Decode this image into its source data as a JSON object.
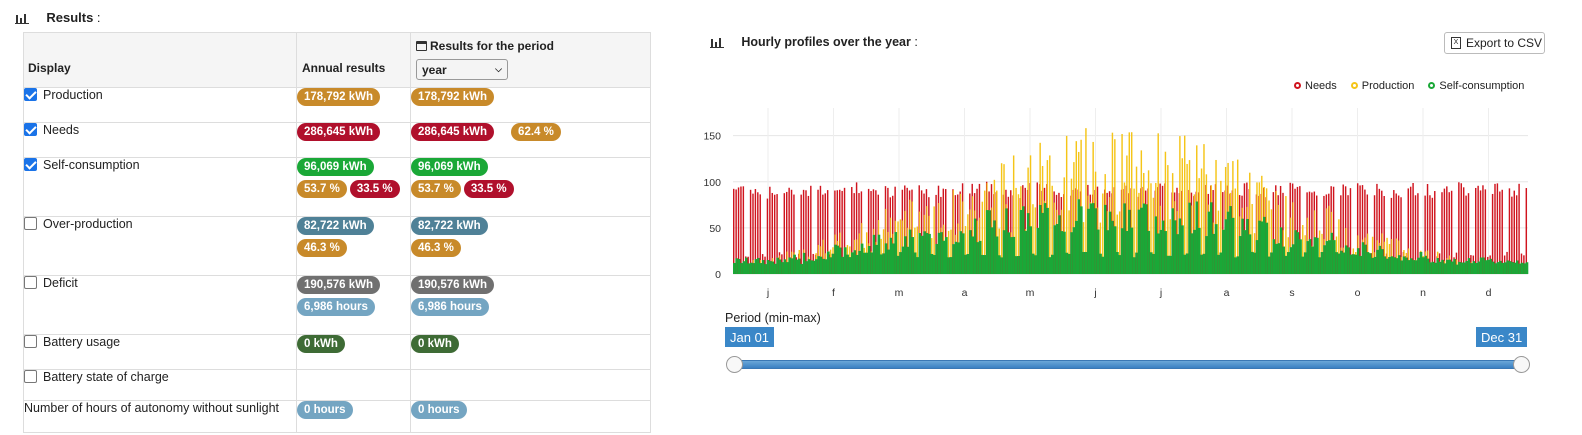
{
  "left": {
    "title": "Results",
    "title_suffix": " :",
    "headers": {
      "display": "Display",
      "annual": "Annual results",
      "period": "Results for the period"
    },
    "period_select": "year",
    "rows": [
      {
        "label": "Production",
        "checked": true,
        "annual": [
          {
            "text": "178,792 kWh",
            "color": "#c88a2a"
          }
        ],
        "period": [
          {
            "text": "178,792 kWh",
            "color": "#c88a2a"
          }
        ]
      },
      {
        "label": "Needs",
        "checked": true,
        "annual": [
          {
            "text": "286,645 kWh",
            "color": "#b0102c"
          }
        ],
        "period": [
          {
            "text": "286,645 kWh",
            "color": "#b0102c"
          },
          {
            "text": "62.4 %",
            "color": "#c88a2a"
          }
        ]
      },
      {
        "label": "Self-consumption",
        "checked": true,
        "annual": [
          {
            "text": "96,069 kWh",
            "color": "#1aa837"
          },
          {
            "text": "53.7 %",
            "color": "#c88a2a"
          },
          {
            "text": "33.5 %",
            "color": "#b0102c"
          }
        ],
        "period": [
          {
            "text": "96,069 kWh",
            "color": "#1aa837"
          },
          {
            "text": "53.7 %",
            "color": "#c88a2a"
          },
          {
            "text": "33.5 %",
            "color": "#b0102c"
          }
        ]
      },
      {
        "label": "Over-production",
        "checked": false,
        "annual": [
          {
            "text": "82,722 kWh",
            "color": "#4f8197"
          },
          {
            "text": "46.3 %",
            "color": "#c88a2a"
          }
        ],
        "period": [
          {
            "text": "82,722 kWh",
            "color": "#4f8197"
          },
          {
            "text": "46.3 %",
            "color": "#c88a2a"
          }
        ]
      },
      {
        "label": "Deficit",
        "checked": false,
        "annual": [
          {
            "text": "190,576 kWh",
            "color": "#707070"
          },
          {
            "text": "6,986 hours",
            "color": "#74a5c2"
          }
        ],
        "period": [
          {
            "text": "190,576 kWh",
            "color": "#707070"
          },
          {
            "text": "6,986 hours",
            "color": "#74a5c2"
          }
        ]
      },
      {
        "label": "Battery usage",
        "checked": false,
        "annual": [
          {
            "text": "0 kWh",
            "color": "#3e6b35"
          }
        ],
        "period": [
          {
            "text": "0 kWh",
            "color": "#3e6b35"
          }
        ]
      },
      {
        "label": "Battery state of charge",
        "checked": false,
        "annual": [],
        "period": []
      },
      {
        "label": "Number of hours of autonomy without sunlight",
        "checked": null,
        "annual": [
          {
            "text": "0 hours",
            "color": "#74a5c2"
          }
        ],
        "period": [
          {
            "text": "0 hours",
            "color": "#74a5c2"
          }
        ]
      }
    ]
  },
  "right": {
    "title": "Hourly profiles over the year",
    "title_suffix": " :",
    "export_label": "Export to CSV",
    "legend": [
      {
        "name": "Needs",
        "color": "#d0141e"
      },
      {
        "name": "Production",
        "color": "#f5c518"
      },
      {
        "name": "Self-consumption",
        "color": "#1aa837"
      }
    ],
    "period_label": "Period (min-max)",
    "range_min": "Jan 01",
    "range_max": "Dec 31",
    "range_color": "#3a87c8"
  },
  "chart_data": {
    "type": "bar",
    "title": "Hourly profiles over the year",
    "y_ticks": [
      "0",
      "50",
      "100",
      "150"
    ],
    "ylim": [
      0,
      180
    ],
    "x_tick_labels": [
      "j",
      "f",
      "m",
      "a",
      "m",
      "j",
      "j",
      "a",
      "s",
      "o",
      "n",
      "d"
    ],
    "grid": true,
    "legend_position": "top-right",
    "series": [
      {
        "name": "Needs",
        "color": "#d0141e",
        "values": [
          100,
          100,
          95,
          100,
          98,
          100,
          98,
          100,
          100,
          95,
          100,
          98,
          98,
          100,
          102,
          98,
          95,
          100,
          100,
          95,
          100,
          98,
          100,
          96,
          98,
          100,
          95,
          100,
          98,
          100,
          96,
          98,
          100,
          95,
          100,
          98,
          100,
          96,
          98,
          100,
          95,
          100,
          98,
          100,
          96,
          100
        ]
      },
      {
        "name": "Production",
        "color": "#f5c518",
        "values": [
          8,
          15,
          18,
          25,
          30,
          40,
          45,
          55,
          70,
          75,
          85,
          95,
          90,
          100,
          110,
          120,
          130,
          140,
          150,
          155,
          160,
          158,
          160,
          162,
          160,
          155,
          150,
          145,
          130,
          125,
          115,
          100,
          90,
          85,
          75,
          60,
          50,
          45,
          38,
          30,
          25,
          18,
          15,
          12,
          10,
          8
        ]
      },
      {
        "name": "Self-consumption",
        "color": "#1aa837",
        "values": [
          8,
          12,
          15,
          20,
          25,
          30,
          35,
          40,
          45,
          50,
          55,
          60,
          55,
          65,
          70,
          75,
          80,
          85,
          85,
          85,
          85,
          85,
          85,
          85,
          85,
          85,
          80,
          80,
          75,
          70,
          65,
          60,
          55,
          50,
          45,
          40,
          35,
          30,
          28,
          25,
          20,
          15,
          12,
          10,
          8,
          8
        ]
      }
    ]
  }
}
